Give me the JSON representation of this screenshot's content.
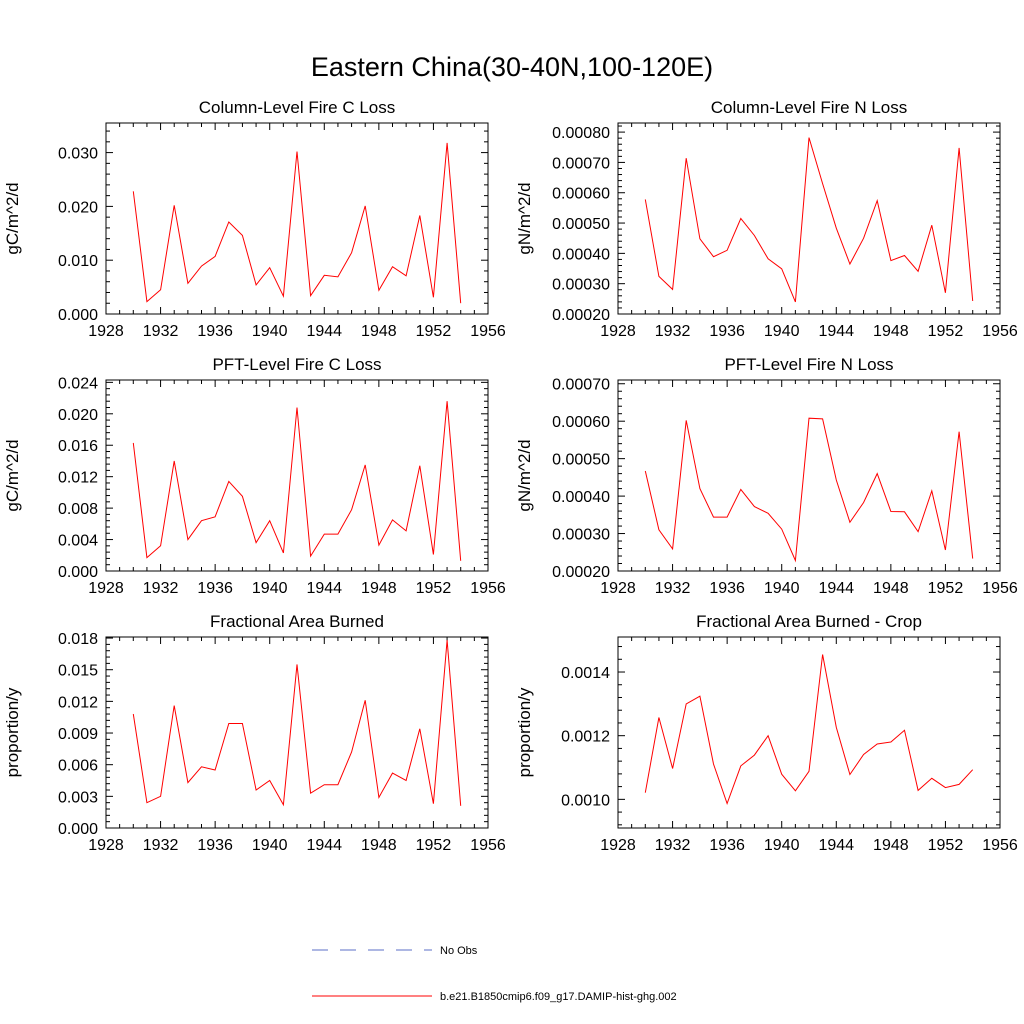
{
  "figure": {
    "title": "Eastern China(30-40N,100-120E)",
    "legend": [
      {
        "label": "No Obs",
        "style": "dashed",
        "color": "#5b6fc7"
      },
      {
        "label": "b.e21.B1850cmip6.f09_g17.DAMIP-hist-ghg.002",
        "style": "solid",
        "color": "#ff0000"
      }
    ]
  },
  "chart_data": [
    {
      "type": "line",
      "title": "Column-Level Fire C Loss",
      "ylabel": "gC/m^2/d",
      "xlim": [
        1928,
        1956
      ],
      "ylim": [
        0,
        0.0355
      ],
      "xticks": [
        1928,
        1932,
        1936,
        1940,
        1944,
        1948,
        1952,
        1956
      ],
      "xtick_labels": [
        "1928",
        "1932",
        "1936",
        "1940",
        "1944",
        "1948",
        "1952",
        "1956"
      ],
      "yticks": [
        0,
        0.01,
        0.02,
        0.03
      ],
      "ytick_labels": [
        "0.000",
        "0.010",
        "0.020",
        "0.030"
      ],
      "series": [
        {
          "color": "#ff0000",
          "x": [
            1930,
            1931,
            1932,
            1933,
            1934,
            1935,
            1936,
            1937,
            1938,
            1939,
            1940,
            1941,
            1942,
            1943,
            1944,
            1945,
            1946,
            1947,
            1948,
            1949,
            1950,
            1951,
            1952,
            1953,
            1954
          ],
          "values": [
            0.0228,
            0.0023,
            0.0045,
            0.0202,
            0.0057,
            0.0089,
            0.0107,
            0.0171,
            0.0146,
            0.0054,
            0.0086,
            0.0033,
            0.0302,
            0.0034,
            0.0072,
            0.0069,
            0.0114,
            0.0201,
            0.0044,
            0.0088,
            0.0071,
            0.0183,
            0.0031,
            0.0318,
            0.002
          ]
        }
      ]
    },
    {
      "type": "line",
      "title": "Column-Level Fire N Loss",
      "ylabel": "gN/m^2/d",
      "xlim": [
        1928,
        1956
      ],
      "ylim": [
        0.0002,
        0.00083
      ],
      "xticks": [
        1928,
        1932,
        1936,
        1940,
        1944,
        1948,
        1952,
        1956
      ],
      "xtick_labels": [
        "1928",
        "1932",
        "1936",
        "1940",
        "1944",
        "1948",
        "1952",
        "1956"
      ],
      "yticks": [
        0.0002,
        0.0003,
        0.0004,
        0.0005,
        0.0006,
        0.0007,
        0.0008
      ],
      "ytick_labels": [
        "0.00020",
        "0.00030",
        "0.00040",
        "0.00050",
        "0.00060",
        "0.00070",
        "0.00080"
      ],
      "series": [
        {
          "color": "#ff0000",
          "x": [
            1930,
            1931,
            1932,
            1933,
            1934,
            1935,
            1936,
            1937,
            1938,
            1939,
            1940,
            1941,
            1942,
            1943,
            1944,
            1945,
            1946,
            1947,
            1948,
            1949,
            1950,
            1951,
            1952,
            1953,
            1954
          ],
          "values": [
            0.000578,
            0.000324,
            0.000281,
            0.000714,
            0.000448,
            0.000389,
            0.00041,
            0.000515,
            0.000459,
            0.000382,
            0.000349,
            0.00024,
            0.000782,
            0.00063,
            0.000483,
            0.000365,
            0.00045,
            0.000574,
            0.000376,
            0.000393,
            0.000341,
            0.000493,
            0.00027,
            0.000748,
            0.000243
          ]
        }
      ]
    },
    {
      "type": "line",
      "title": "PFT-Level Fire C Loss",
      "ylabel": "gC/m^2/d",
      "xlim": [
        1928,
        1956
      ],
      "ylim": [
        0,
        0.0243
      ],
      "xticks": [
        1928,
        1932,
        1936,
        1940,
        1944,
        1948,
        1952,
        1956
      ],
      "xtick_labels": [
        "1928",
        "1932",
        "1936",
        "1940",
        "1944",
        "1948",
        "1952",
        "1956"
      ],
      "yticks": [
        0,
        0.004,
        0.008,
        0.012,
        0.016,
        0.02,
        0.024
      ],
      "ytick_labels": [
        "0.000",
        "0.004",
        "0.008",
        "0.012",
        "0.016",
        "0.020",
        "0.024"
      ],
      "series": [
        {
          "color": "#ff0000",
          "x": [
            1930,
            1931,
            1932,
            1933,
            1934,
            1935,
            1936,
            1937,
            1938,
            1939,
            1940,
            1941,
            1942,
            1943,
            1944,
            1945,
            1946,
            1947,
            1948,
            1949,
            1950,
            1951,
            1952,
            1953,
            1954
          ],
          "values": [
            0.0163,
            0.0017,
            0.0032,
            0.014,
            0.004,
            0.0064,
            0.0069,
            0.0114,
            0.0095,
            0.0036,
            0.0064,
            0.0023,
            0.0208,
            0.0019,
            0.0047,
            0.0047,
            0.0078,
            0.0135,
            0.0033,
            0.0065,
            0.0051,
            0.0134,
            0.0021,
            0.0216,
            0.0013
          ]
        }
      ]
    },
    {
      "type": "line",
      "title": "PFT-Level Fire N Loss",
      "ylabel": "gN/m^2/d",
      "xlim": [
        1928,
        1956
      ],
      "ylim": [
        0.0002,
        0.00071
      ],
      "xticks": [
        1928,
        1932,
        1936,
        1940,
        1944,
        1948,
        1952,
        1956
      ],
      "xtick_labels": [
        "1928",
        "1932",
        "1936",
        "1940",
        "1944",
        "1948",
        "1952",
        "1956"
      ],
      "yticks": [
        0.0002,
        0.0003,
        0.0004,
        0.0005,
        0.0006,
        0.0007
      ],
      "ytick_labels": [
        "0.00020",
        "0.00030",
        "0.00040",
        "0.00050",
        "0.00060",
        "0.00070"
      ],
      "series": [
        {
          "color": "#ff0000",
          "x": [
            1930,
            1931,
            1932,
            1933,
            1934,
            1935,
            1936,
            1937,
            1938,
            1939,
            1940,
            1941,
            1942,
            1943,
            1944,
            1945,
            1946,
            1947,
            1948,
            1949,
            1950,
            1951,
            1952,
            1953,
            1954
          ],
          "values": [
            0.000467,
            0.00031,
            0.000259,
            0.000602,
            0.00042,
            0.000344,
            0.000344,
            0.000418,
            0.000372,
            0.000354,
            0.000312,
            0.000228,
            0.000608,
            0.000606,
            0.000443,
            0.00033,
            0.000383,
            0.00046,
            0.000359,
            0.000358,
            0.000305,
            0.000414,
            0.000256,
            0.000572,
            0.000233
          ]
        }
      ]
    },
    {
      "type": "line",
      "title": "Fractional Area Burned",
      "ylabel": "proportion/y",
      "xlim": [
        1928,
        1956
      ],
      "ylim": [
        0,
        0.0181
      ],
      "xticks": [
        1928,
        1932,
        1936,
        1940,
        1944,
        1948,
        1952,
        1956
      ],
      "xtick_labels": [
        "1928",
        "1932",
        "1936",
        "1940",
        "1944",
        "1948",
        "1952",
        "1956"
      ],
      "yticks": [
        0,
        0.003,
        0.006,
        0.009,
        0.012,
        0.015,
        0.018
      ],
      "ytick_labels": [
        "0.000",
        "0.003",
        "0.006",
        "0.009",
        "0.012",
        "0.015",
        "0.018"
      ],
      "series": [
        {
          "color": "#ff0000",
          "x": [
            1930,
            1931,
            1932,
            1933,
            1934,
            1935,
            1936,
            1937,
            1938,
            1939,
            1940,
            1941,
            1942,
            1943,
            1944,
            1945,
            1946,
            1947,
            1948,
            1949,
            1950,
            1951,
            1952,
            1953,
            1954
          ],
          "values": [
            0.0108,
            0.0024,
            0.003,
            0.0116,
            0.0043,
            0.0058,
            0.0055,
            0.0099,
            0.0099,
            0.0036,
            0.0045,
            0.0022,
            0.0155,
            0.0033,
            0.0041,
            0.0041,
            0.0072,
            0.0121,
            0.0029,
            0.0052,
            0.0045,
            0.0094,
            0.0023,
            0.0178,
            0.0021
          ]
        }
      ]
    },
    {
      "type": "line",
      "title": "Fractional Area Burned - Crop",
      "ylabel": "proportion/y",
      "xlim": [
        1928,
        1956
      ],
      "ylim": [
        0.00091,
        0.00151
      ],
      "xticks": [
        1928,
        1932,
        1936,
        1940,
        1944,
        1948,
        1952,
        1956
      ],
      "xtick_labels": [
        "1928",
        "1932",
        "1936",
        "1940",
        "1944",
        "1948",
        "1952",
        "1956"
      ],
      "yticks": [
        0.001,
        0.0012,
        0.0014
      ],
      "ytick_labels": [
        "0.0010",
        "0.0012",
        "0.0014"
      ],
      "series": [
        {
          "color": "#ff0000",
          "x": [
            1930,
            1931,
            1932,
            1933,
            1934,
            1935,
            1936,
            1937,
            1938,
            1939,
            1940,
            1941,
            1942,
            1943,
            1944,
            1945,
            1946,
            1947,
            1948,
            1949,
            1950,
            1951,
            1952,
            1953,
            1954
          ],
          "values": [
            0.001021,
            0.001257,
            0.001097,
            0.0013,
            0.001324,
            0.001111,
            0.000987,
            0.001105,
            0.001139,
            0.0012,
            0.001079,
            0.001027,
            0.001088,
            0.001455,
            0.001226,
            0.001078,
            0.001141,
            0.001174,
            0.00118,
            0.001217,
            0.001028,
            0.001066,
            0.001037,
            0.001047,
            0.001093
          ]
        }
      ]
    }
  ]
}
